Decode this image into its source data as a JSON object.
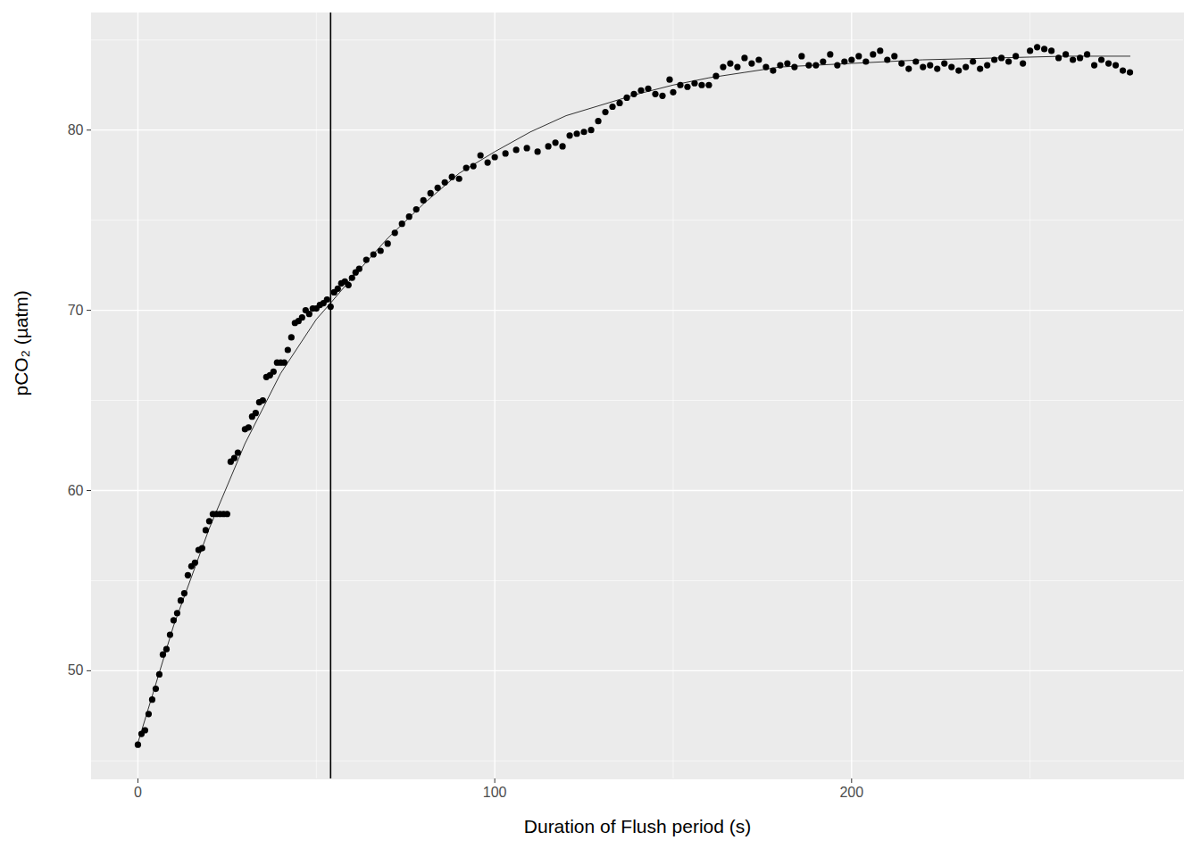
{
  "chart_data": {
    "type": "scatter",
    "x_label": "Duration of Flush period (s)",
    "y_label": "pCO₂ (µatm)",
    "xlim": [
      -13,
      293
    ],
    "xticks": [
      0,
      100,
      200
    ],
    "ylim": [
      44,
      86.5
    ],
    "yticks": [
      50,
      60,
      70,
      80
    ],
    "grid": true,
    "color": "#000000",
    "x": [
      0,
      1,
      2,
      3,
      4,
      5,
      6,
      7,
      8,
      9,
      10,
      11,
      12,
      13,
      14,
      15,
      16,
      17,
      18,
      19,
      20,
      21,
      22,
      23,
      24,
      25,
      26,
      27,
      28,
      30,
      31,
      32,
      33,
      34,
      35,
      36,
      37,
      38,
      39,
      40,
      41,
      42,
      43,
      44,
      45,
      46,
      47,
      48,
      49,
      50,
      51,
      52,
      53,
      54,
      55,
      56,
      57,
      58,
      59,
      60,
      61,
      62,
      64,
      66,
      68,
      70,
      72,
      74,
      76,
      78,
      80,
      82,
      84,
      86,
      88,
      90,
      92,
      94,
      96,
      98,
      100,
      103,
      106,
      109,
      112,
      115,
      117,
      119,
      121,
      123,
      125,
      127,
      129,
      131,
      133,
      135,
      137,
      139,
      141,
      143,
      145,
      147,
      149,
      150,
      152,
      154,
      156,
      158,
      160,
      162,
      164,
      166,
      168,
      170,
      172,
      174,
      176,
      178,
      180,
      182,
      184,
      186,
      188,
      190,
      192,
      194,
      196,
      198,
      200,
      202,
      204,
      206,
      208,
      210,
      212,
      214,
      216,
      218,
      220,
      222,
      224,
      226,
      228,
      230,
      232,
      234,
      236,
      238,
      240,
      242,
      244,
      246,
      248,
      250,
      252,
      254,
      256,
      258,
      260,
      262,
      264,
      266,
      268,
      270,
      272,
      274,
      276,
      278
    ],
    "values": [
      45.9,
      46.5,
      46.7,
      47.6,
      48.4,
      49.0,
      49.8,
      50.9,
      51.2,
      52.0,
      52.8,
      53.2,
      53.9,
      54.3,
      55.3,
      55.8,
      56.0,
      56.7,
      56.8,
      57.8,
      58.3,
      58.7,
      58.7,
      58.7,
      58.7,
      58.7,
      61.6,
      61.8,
      62.1,
      63.4,
      63.5,
      64.1,
      64.3,
      64.9,
      65.0,
      66.3,
      66.4,
      66.6,
      67.1,
      67.1,
      67.1,
      67.8,
      68.5,
      69.3,
      69.4,
      69.6,
      70.0,
      69.8,
      70.1,
      70.1,
      70.3,
      70.4,
      70.6,
      70.2,
      71.0,
      71.2,
      71.5,
      71.6,
      71.4,
      71.8,
      72.1,
      72.3,
      72.8,
      73.1,
      73.3,
      73.7,
      74.3,
      74.8,
      75.2,
      75.6,
      76.1,
      76.5,
      76.8,
      77.1,
      77.4,
      77.3,
      77.9,
      78.0,
      78.6,
      78.2,
      78.5,
      78.7,
      78.9,
      79.0,
      78.8,
      79.1,
      79.3,
      79.1,
      79.7,
      79.8,
      79.9,
      80.0,
      80.5,
      81.0,
      81.3,
      81.5,
      81.8,
      82.0,
      82.2,
      82.3,
      82.0,
      81.9,
      82.8,
      82.1,
      82.5,
      82.4,
      82.6,
      82.5,
      82.5,
      83.0,
      83.5,
      83.7,
      83.5,
      84.0,
      83.7,
      83.9,
      83.5,
      83.3,
      83.6,
      83.7,
      83.5,
      84.1,
      83.6,
      83.6,
      83.8,
      84.2,
      83.6,
      83.8,
      83.9,
      84.1,
      83.8,
      84.2,
      84.4,
      83.9,
      84.1,
      83.7,
      83.4,
      83.8,
      83.5,
      83.6,
      83.4,
      83.7,
      83.5,
      83.3,
      83.5,
      83.8,
      83.4,
      83.6,
      83.9,
      84.0,
      83.8,
      84.1,
      83.7,
      84.4,
      84.6,
      84.5,
      84.4,
      84.0,
      84.2,
      83.9,
      84.0,
      84.2,
      83.6,
      83.9,
      83.7,
      83.6,
      83.3,
      83.2
    ],
    "fit": {
      "x": [
        0,
        10,
        20,
        30,
        40,
        50,
        54,
        60,
        70,
        80,
        90,
        100,
        110,
        120,
        130,
        140,
        150,
        160,
        170,
        180,
        190,
        200,
        220,
        240,
        260,
        278
      ],
      "values": [
        46.0,
        52.5,
        57.9,
        62.6,
        66.5,
        69.5,
        70.4,
        71.8,
        74.0,
        75.9,
        77.6,
        78.8,
        79.9,
        80.8,
        81.4,
        82.0,
        82.5,
        82.9,
        83.2,
        83.5,
        83.6,
        83.7,
        83.9,
        84.0,
        84.1,
        84.1
      ]
    },
    "vline_x": 54
  }
}
